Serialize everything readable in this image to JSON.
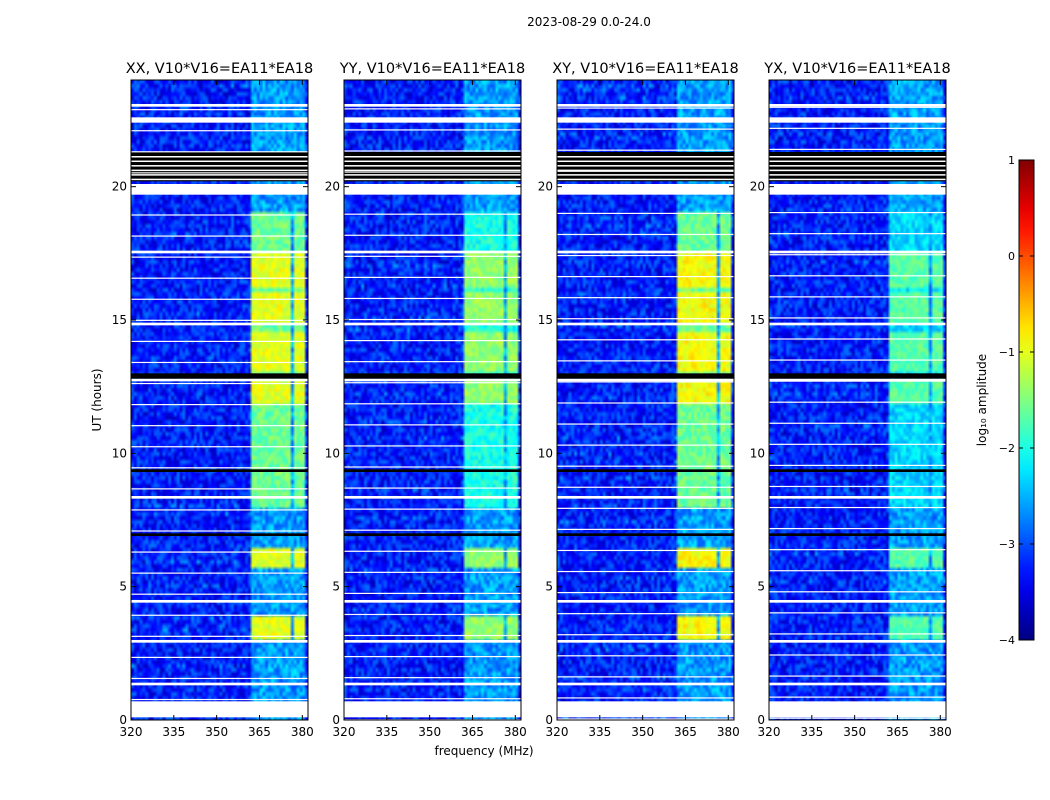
{
  "figure_title": "2023-08-29 0.0-24.0",
  "chart_data": {
    "type": "heatmap",
    "x_label": "frequency (MHz)",
    "y_label": "UT (hours)",
    "x_lim": [
      320,
      382
    ],
    "y_lim": [
      0,
      24
    ],
    "x_ticks": [
      320,
      335,
      350,
      365,
      380
    ],
    "y_ticks": [
      0,
      5,
      10,
      15,
      20
    ],
    "panels": [
      {
        "title": "XX, V10*V16=EA11*EA18",
        "pol": "XX",
        "rfi_level": -1.0,
        "rfi_level_mid": -1.6,
        "row_shift": 0.0
      },
      {
        "title": "YY, V10*V16=EA11*EA18",
        "pol": "YY",
        "rfi_level": -1.4,
        "rfi_level_mid": -2.0,
        "row_shift": 0.2
      },
      {
        "title": "XY, V10*V16=EA11*EA18",
        "pol": "XY",
        "rfi_level": -0.9,
        "rfi_level_mid": -1.6,
        "row_shift": 0.35
      },
      {
        "title": "YX, V10*V16=EA11*EA18",
        "pol": "YX",
        "rfi_level": -1.7,
        "rfi_level_mid": -2.3,
        "row_shift": 0.5
      }
    ],
    "rfi_band_mhz": [
      362,
      381
    ],
    "rfi_subbands_mhz": [
      [
        362,
        366.5
      ],
      [
        367.5,
        371.5
      ],
      [
        372.5,
        376
      ],
      [
        377,
        380.5
      ]
    ],
    "strong_rfi_hours": [
      [
        3.0,
        3.9
      ],
      [
        5.7,
        6.5
      ],
      [
        11.8,
        12.7
      ],
      [
        13.0,
        14.6
      ],
      [
        14.9,
        16.0
      ],
      [
        16.2,
        17.5
      ]
    ],
    "flagged_white_hours": [
      [
        0.1,
        0.7
      ],
      [
        1.3,
        1.4
      ],
      [
        2.9,
        3.0
      ],
      [
        4.4,
        4.5
      ],
      [
        8.3,
        8.4
      ],
      [
        12.7,
        12.8
      ],
      [
        14.8,
        14.9
      ],
      [
        17.5,
        17.6
      ],
      [
        19.7,
        20.1
      ],
      [
        22.4,
        22.6
      ],
      [
        23.0,
        23.1
      ]
    ],
    "flagged_black_hours": [
      [
        20.2,
        21.3
      ],
      [
        12.8,
        13.0
      ],
      [
        9.3,
        9.4
      ],
      [
        6.9,
        7.0
      ]
    ],
    "colorbar": {
      "label": "log₁₀ amplitude",
      "min": -4,
      "max": 1,
      "ticks": [
        1,
        0,
        -1,
        -2,
        -3,
        -4
      ],
      "tick_labels": [
        "1",
        "0",
        "−1",
        "−2",
        "−3",
        "−4"
      ],
      "colormap": "jet"
    }
  }
}
